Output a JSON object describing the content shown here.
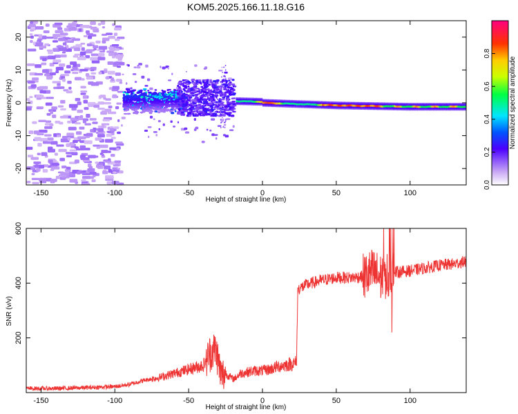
{
  "figure": {
    "title": "KOM5.2025.166.11.18.G16"
  },
  "chart_data": [
    {
      "type": "heatmap",
      "title": "KOM5.2025.166.11.18.G16",
      "xlabel": "Height of straight line (km)",
      "ylabel": "Frequency (Hz)",
      "xlim": [
        -160,
        138
      ],
      "ylim": [
        -25,
        25
      ],
      "x_ticks": [
        -150,
        -100,
        -50,
        0,
        50,
        100
      ],
      "y_ticks": [
        -20,
        -10,
        0,
        10,
        20
      ],
      "colorbar": {
        "label": "Normalized spectral amplitude",
        "range": [
          0,
          1
        ],
        "ticks": [
          0.0,
          0.2,
          0.4,
          0.6,
          0.8
        ]
      },
      "grid": false,
      "ridge": {
        "description_points": [
          {
            "x": -160,
            "freq": null
          },
          {
            "x": -20,
            "freq": 0.3
          },
          {
            "x": 0,
            "freq": 0.0
          },
          {
            "x": 50,
            "freq": -0.8
          },
          {
            "x": 100,
            "freq": -1.2
          },
          {
            "x": 138,
            "freq": -1.2
          }
        ]
      },
      "clusters": [
        {
          "x0": -160,
          "x1": -100,
          "f0": -25,
          "f1": 25,
          "amp": 0.05
        },
        {
          "x0": -95,
          "x1": -55,
          "f0": -3,
          "f1": 6,
          "amp": 0.4
        },
        {
          "x0": -55,
          "x1": -25,
          "f0": -5,
          "f1": 7,
          "amp": 0.25
        },
        {
          "x0": -18,
          "x1": 138,
          "f0": -2,
          "f1": 1,
          "amp": 0.9
        }
      ]
    },
    {
      "type": "line",
      "xlabel": "Height of straight line (km)",
      "ylabel": "SNR (v/v)",
      "xlim": [
        -160,
        138
      ],
      "ylim": [
        0,
        600
      ],
      "x_ticks": [
        -150,
        -100,
        0,
        50,
        100
      ],
      "x_ticks_all": [
        -150,
        -100,
        -50,
        0,
        50,
        100
      ],
      "y_ticks": [
        200,
        400,
        600
      ],
      "grid": false,
      "series": [
        {
          "color": "#ee3333",
          "x": [
            -160,
            -140,
            -120,
            -100,
            -90,
            -80,
            -70,
            -60,
            -50,
            -40,
            -36,
            -32,
            -30,
            -28,
            -25,
            -20,
            -18,
            -15,
            -10,
            -5,
            0,
            5,
            10,
            15,
            20,
            23,
            24,
            25,
            30,
            40,
            50,
            60,
            70,
            75,
            80,
            85,
            88,
            90,
            100,
            110,
            120,
            130,
            138
          ],
          "y": [
            15,
            15,
            18,
            22,
            30,
            45,
            55,
            70,
            85,
            100,
            140,
            160,
            120,
            60,
            70,
            50,
            55,
            70,
            75,
            80,
            80,
            85,
            95,
            100,
            105,
            110,
            380,
            380,
            395,
            410,
            420,
            420,
            425,
            440,
            420,
            430,
            420,
            440,
            445,
            455,
            465,
            470,
            480
          ]
        }
      ]
    }
  ]
}
